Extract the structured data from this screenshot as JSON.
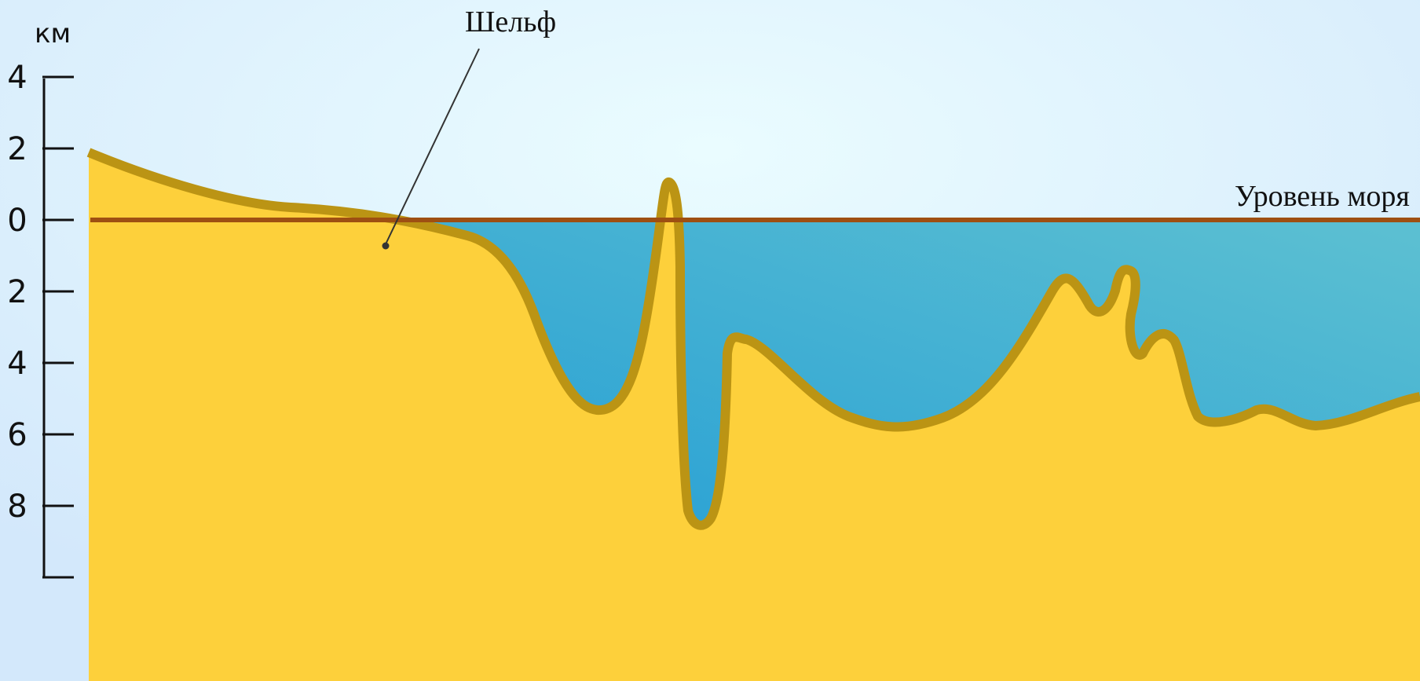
{
  "diagram": {
    "axis": {
      "unit": "км",
      "ticks": [
        {
          "label": "4",
          "elevation_km": 4
        },
        {
          "label": "2",
          "elevation_km": 2
        },
        {
          "label": "0",
          "elevation_km": 0
        },
        {
          "label": "2",
          "elevation_km": -2
        },
        {
          "label": "4",
          "elevation_km": -4
        },
        {
          "label": "6",
          "elevation_km": -6
        },
        {
          "label": "8",
          "elevation_km": -8
        }
      ]
    },
    "labels": {
      "shelf": "Шельф",
      "sea_level": "Уровень моря"
    },
    "colors": {
      "sky_center": "#eafcff",
      "sky_edge": "#d3e8fb",
      "land": "#fdd03b",
      "seabed_outline": "#bb9414",
      "water_deep": "#28a0d4",
      "water_shallow": "#5bbfd2",
      "sea_level_line": "#9e4f12",
      "axis": "#111111"
    }
  }
}
